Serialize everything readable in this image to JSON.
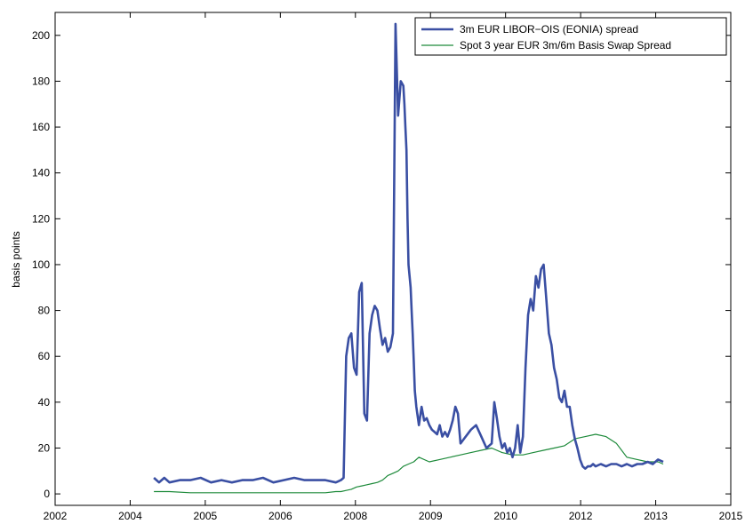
{
  "chart_data": {
    "type": "line",
    "title": "",
    "xlabel": "",
    "ylabel": "basis points",
    "xlim": [
      2002,
      2015
    ],
    "ylim": [
      -5,
      210
    ],
    "xticks": [
      "2002",
      "2004",
      "2005",
      "2006",
      "2008",
      "2009",
      "2010",
      "2012",
      "2013",
      "2015"
    ],
    "yticks": [
      "0",
      "20",
      "40",
      "60",
      "80",
      "100",
      "120",
      "140",
      "160",
      "180",
      "200"
    ],
    "grid": false,
    "legend_position": "top-right",
    "series": [
      {
        "name": "3m EUR LIBOR−OIS (EONIA) spread",
        "color": "#3a4fa3",
        "width": 2.6,
        "x": [
          2003.9,
          2004.0,
          2004.05,
          2004.1,
          2004.2,
          2004.4,
          2004.6,
          2004.8,
          2005.0,
          2005.2,
          2005.4,
          2005.6,
          2005.8,
          2006.0,
          2006.2,
          2006.4,
          2006.6,
          2006.8,
          2007.0,
          2007.2,
          2007.4,
          2007.5,
          2007.55,
          2007.6,
          2007.65,
          2007.7,
          2007.75,
          2007.8,
          2007.85,
          2007.9,
          2007.95,
          2008.0,
          2008.05,
          2008.1,
          2008.15,
          2008.2,
          2008.25,
          2008.3,
          2008.35,
          2008.4,
          2008.45,
          2008.5,
          2008.55,
          2008.6,
          2008.65,
          2008.7,
          2008.72,
          2008.74,
          2008.76,
          2008.78,
          2008.8,
          2008.82,
          2008.84,
          2008.86,
          2008.88,
          2008.9,
          2008.92,
          2008.95,
          2009.0,
          2009.05,
          2009.1,
          2009.15,
          2009.2,
          2009.25,
          2009.3,
          2009.35,
          2009.4,
          2009.45,
          2009.5,
          2009.55,
          2009.6,
          2009.65,
          2009.7,
          2009.75,
          2009.8,
          2009.9,
          2010.0,
          2010.1,
          2010.2,
          2010.3,
          2010.4,
          2010.45,
          2010.5,
          2010.55,
          2010.6,
          2010.65,
          2010.7,
          2010.75,
          2010.8,
          2010.85,
          2010.9,
          2010.95,
          2011.0,
          2011.05,
          2011.1,
          2011.15,
          2011.2,
          2011.25,
          2011.3,
          2011.35,
          2011.4,
          2011.45,
          2011.5,
          2011.55,
          2011.6,
          2011.65,
          2011.7,
          2011.75,
          2011.8,
          2011.85,
          2011.9,
          2011.95,
          2012.0,
          2012.05,
          2012.1,
          2012.15,
          2012.2,
          2012.25,
          2012.3,
          2012.35,
          2012.4,
          2012.5,
          2012.6,
          2012.7,
          2012.8,
          2012.9,
          2013.0,
          2013.1,
          2013.2,
          2013.3,
          2013.4,
          2013.5,
          2013.6,
          2013.7
        ],
        "values": [
          7,
          5,
          6,
          7,
          5,
          6,
          6,
          7,
          5,
          6,
          5,
          6,
          6,
          7,
          5,
          6,
          7,
          6,
          6,
          6,
          5,
          6,
          7,
          60,
          68,
          70,
          55,
          52,
          88,
          92,
          35,
          32,
          70,
          78,
          82,
          80,
          72,
          65,
          68,
          62,
          64,
          70,
          205,
          165,
          180,
          178,
          170,
          160,
          150,
          120,
          100,
          95,
          90,
          80,
          70,
          58,
          45,
          38,
          30,
          38,
          32,
          33,
          30,
          28,
          27,
          26,
          30,
          25,
          27,
          25,
          28,
          32,
          38,
          35,
          22,
          25,
          28,
          30,
          25,
          20,
          22,
          40,
          33,
          25,
          20,
          22,
          18,
          20,
          16,
          20,
          30,
          18,
          25,
          55,
          78,
          85,
          80,
          95,
          90,
          98,
          100,
          85,
          70,
          65,
          55,
          50,
          42,
          40,
          45,
          38,
          38,
          30,
          24,
          20,
          15,
          12,
          11,
          12,
          12,
          13,
          12,
          13,
          12,
          13,
          13,
          12,
          13,
          12,
          13,
          13,
          14,
          13,
          15,
          14
        ]
      },
      {
        "name": "Spot 3 year EUR 3m/6m Basis Swap Spread",
        "color": "#1d8a3a",
        "width": 1.2,
        "x": [
          2003.9,
          2004.2,
          2004.6,
          2005.0,
          2005.4,
          2005.8,
          2006.2,
          2006.6,
          2007.0,
          2007.2,
          2007.4,
          2007.5,
          2007.6,
          2007.7,
          2007.8,
          2007.9,
          2008.0,
          2008.1,
          2008.2,
          2008.3,
          2008.4,
          2008.5,
          2008.6,
          2008.7,
          2008.8,
          2008.9,
          2009.0,
          2009.2,
          2009.4,
          2009.6,
          2009.8,
          2010.0,
          2010.2,
          2010.4,
          2010.6,
          2010.8,
          2011.0,
          2011.2,
          2011.4,
          2011.6,
          2011.8,
          2012.0,
          2012.2,
          2012.4,
          2012.6,
          2012.8,
          2013.0,
          2013.2,
          2013.4,
          2013.6,
          2013.7
        ],
        "values": [
          1,
          1,
          0.5,
          0.5,
          0.5,
          0.5,
          0.5,
          0.5,
          0.5,
          0.5,
          1,
          1,
          1.5,
          2,
          3,
          3.5,
          4,
          4.5,
          5,
          6,
          8,
          9,
          10,
          12,
          13,
          14,
          16,
          14,
          15,
          16,
          17,
          18,
          19,
          20,
          18,
          17,
          17,
          18,
          19,
          20,
          21,
          24,
          25,
          26,
          25,
          22,
          16,
          15,
          14,
          14,
          13
        ]
      }
    ]
  }
}
